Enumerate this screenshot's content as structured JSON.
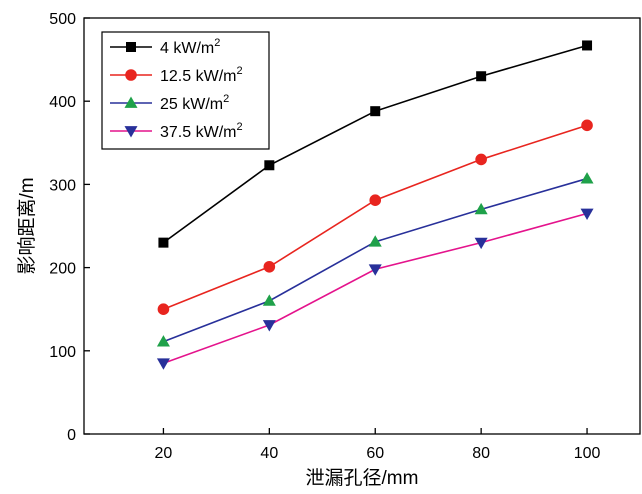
{
  "chart_data": {
    "type": "line",
    "xlabel": "泄漏孔径/mm",
    "ylabel": "影响距离/m",
    "xlim": [
      5,
      110
    ],
    "ylim": [
      0,
      500
    ],
    "x_ticks": [
      "20",
      "40",
      "60",
      "80",
      "100"
    ],
    "y_ticks": [
      "0",
      "100",
      "200",
      "300",
      "400",
      "500"
    ],
    "x": [
      20,
      40,
      60,
      80,
      100
    ],
    "legend_position": "top-left",
    "grid": false,
    "series": [
      {
        "name": "4 kW/m",
        "superscript": "2",
        "values": [
          230,
          323,
          388,
          430,
          467
        ],
        "color": "#000000",
        "marker": "square"
      },
      {
        "name": "12.5 kW/m",
        "superscript": "2",
        "values": [
          150,
          201,
          281,
          330,
          371
        ],
        "color": "#e8251f",
        "marker": "circle"
      },
      {
        "name": "25 kW/m",
        "superscript": "2",
        "values": [
          111,
          160,
          231,
          270,
          307
        ],
        "color": "#28309a",
        "marker": "triangle-up",
        "marker_color": "#1fa14a"
      },
      {
        "name": "37.5 kW/m",
        "superscript": "2",
        "values": [
          85,
          131,
          198,
          230,
          265
        ],
        "color": "#e4138c",
        "marker": "triangle-down",
        "marker_color": "#28309a"
      }
    ]
  }
}
